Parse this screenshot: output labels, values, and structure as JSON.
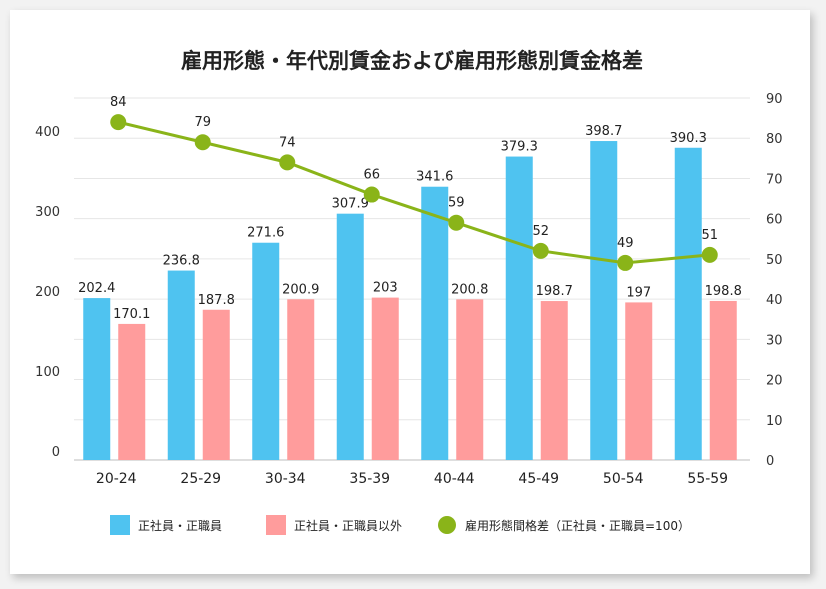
{
  "chart_data": {
    "type": "bar",
    "title": "雇用形態・年代別賃金および雇用形態別賃金格差",
    "categories": [
      "20-24",
      "25-29",
      "30-34",
      "35-39",
      "40-44",
      "45-49",
      "50-54",
      "55-59"
    ],
    "series": [
      {
        "name": "正社員・正職員",
        "type": "bar",
        "axis": "left",
        "color": "#4fc3f0",
        "values": [
          202.4,
          236.8,
          271.6,
          307.9,
          341.6,
          379.3,
          398.7,
          390.3
        ],
        "labels": [
          "202.4",
          "236.8",
          "271.6",
          "307.9",
          "341.6",
          "379.3",
          "398.7",
          "390.3"
        ]
      },
      {
        "name": "正社員・正職員以外",
        "type": "bar",
        "axis": "left",
        "color": "#ff9c9c",
        "values": [
          170.1,
          187.8,
          200.9,
          203,
          200.8,
          198.7,
          197,
          198.8
        ],
        "labels": [
          "170.1",
          "187.8",
          "200.9",
          "203",
          "200.8",
          "198.7",
          "197",
          "198.8"
        ]
      },
      {
        "name": "雇用形態間格差（正社員・正職員=100）",
        "type": "line",
        "axis": "right",
        "color": "#8ab419",
        "values": [
          84,
          79,
          74,
          66,
          59,
          52,
          49,
          51
        ],
        "labels": [
          "84",
          "79",
          "74",
          "66",
          "59",
          "52",
          "49",
          "51"
        ]
      }
    ],
    "y_left": {
      "min": 0,
      "max": 450,
      "ticks": [
        0,
        100,
        200,
        300,
        400
      ],
      "tick_labels": [
        "0",
        "100",
        "200",
        "300",
        "400"
      ]
    },
    "y_right": {
      "min": 0,
      "max": 90,
      "ticks": [
        0,
        10,
        20,
        30,
        40,
        50,
        60,
        70,
        80,
        90
      ],
      "tick_labels": [
        "0",
        "10",
        "20",
        "30",
        "40",
        "50",
        "60",
        "70",
        "80",
        "90"
      ]
    },
    "grid": true,
    "legend_position": "bottom"
  }
}
